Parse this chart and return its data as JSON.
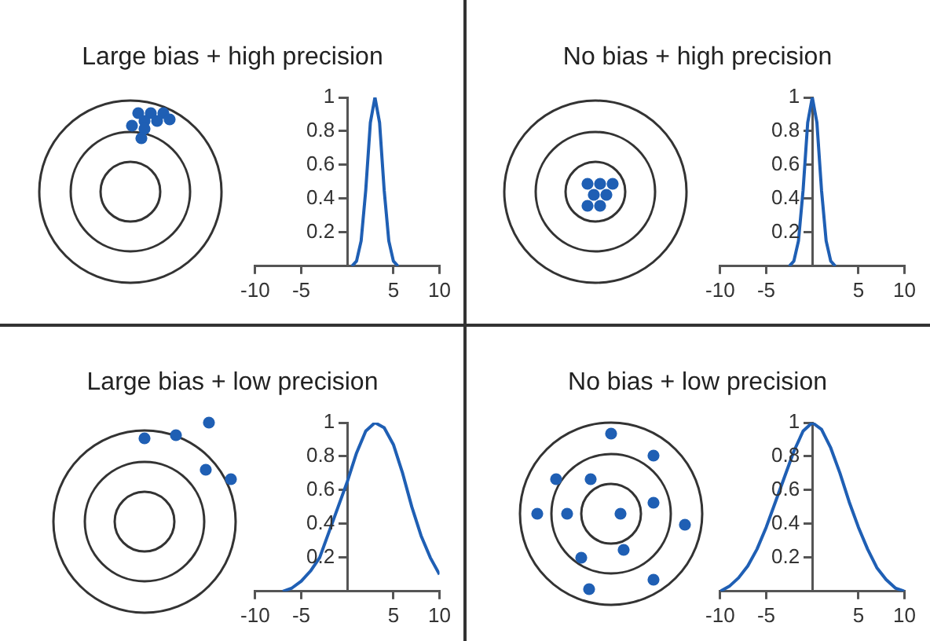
{
  "chart_data": [
    {
      "type": "line",
      "title": "Large bias + high precision",
      "x": [
        0.5,
        1,
        1.5,
        2,
        2.5,
        3,
        3.5,
        4,
        4.5,
        5,
        5.5
      ],
      "series": [
        {
          "color": "#1f5fb4",
          "values": [
            0,
            0.03,
            0.15,
            0.45,
            0.85,
            1,
            0.85,
            0.45,
            0.15,
            0.03,
            0
          ]
        }
      ],
      "xlim": [
        -10,
        10
      ],
      "xticks": [
        -10,
        -5,
        5,
        10
      ],
      "ylim": [
        0,
        1
      ],
      "yticks": [
        0.2,
        0.4,
        0.6,
        0.8,
        1
      ],
      "grid": false
    },
    {
      "type": "line",
      "title": "No bias + high precision",
      "x": [
        -2.5,
        -2,
        -1.5,
        -1,
        -0.5,
        0,
        0.5,
        1,
        1.5,
        2,
        2.5
      ],
      "series": [
        {
          "color": "#1f5fb4",
          "values": [
            0,
            0.03,
            0.15,
            0.45,
            0.85,
            1,
            0.85,
            0.45,
            0.15,
            0.03,
            0
          ]
        }
      ],
      "xlim": [
        -10,
        10
      ],
      "xticks": [
        -10,
        -5,
        5,
        10
      ],
      "ylim": [
        0,
        1
      ],
      "yticks": [
        0.2,
        0.4,
        0.6,
        0.8,
        1
      ],
      "grid": false
    },
    {
      "type": "line",
      "title": "Large bias + low precision",
      "x": [
        -7,
        -6,
        -5,
        -4,
        -3,
        -2,
        -1,
        0,
        1,
        2,
        3,
        4,
        5,
        6,
        7,
        8,
        9,
        10
      ],
      "series": [
        {
          "color": "#1f5fb4",
          "values": [
            0,
            0.02,
            0.06,
            0.12,
            0.2,
            0.35,
            0.5,
            0.65,
            0.82,
            0.95,
            1,
            0.97,
            0.87,
            0.7,
            0.5,
            0.33,
            0.2,
            0.1
          ]
        }
      ],
      "xlim": [
        -10,
        10
      ],
      "xticks": [
        -10,
        -5,
        5,
        10
      ],
      "ylim": [
        0,
        1
      ],
      "yticks": [
        0.2,
        0.4,
        0.6,
        0.8,
        1
      ],
      "grid": false
    },
    {
      "type": "line",
      "title": "No bias + low precision",
      "x": [
        -10,
        -9,
        -8,
        -7,
        -6,
        -5,
        -4,
        -3,
        -2,
        -1,
        0,
        1,
        2,
        3,
        4,
        5,
        6,
        7,
        8,
        9,
        10
      ],
      "series": [
        {
          "color": "#1f5fb4",
          "values": [
            0,
            0.03,
            0.08,
            0.15,
            0.25,
            0.38,
            0.53,
            0.68,
            0.83,
            0.95,
            1,
            0.96,
            0.85,
            0.7,
            0.53,
            0.38,
            0.25,
            0.14,
            0.07,
            0.02,
            0
          ]
        }
      ],
      "xlim": [
        -10,
        10
      ],
      "xticks": [
        -10,
        -5,
        5,
        10
      ],
      "ylim": [
        0,
        1
      ],
      "yticks": [
        0.2,
        0.4,
        0.6,
        0.8,
        1
      ],
      "grid": false
    }
  ]
}
